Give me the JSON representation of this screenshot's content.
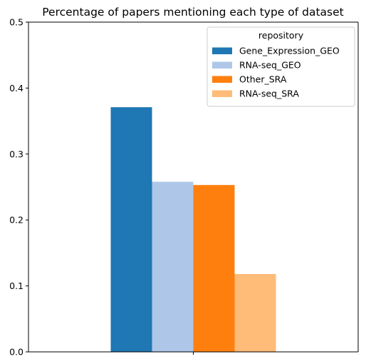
{
  "chart_data": {
    "type": "bar",
    "title": "Percentage of papers mentioning each type of dataset",
    "xlabel": "",
    "ylabel": "",
    "categories": [
      ""
    ],
    "ylim": [
      0,
      0.5
    ],
    "yticks": [
      "0.0",
      "0.1",
      "0.2",
      "0.3",
      "0.4",
      "0.5"
    ],
    "ytick_values": [
      0.0,
      0.1,
      0.2,
      0.3,
      0.4,
      0.5
    ],
    "grid": false,
    "legend": {
      "title": "repository",
      "placement": "top-right"
    },
    "series": [
      {
        "name": "Gene_Expression_GEO",
        "values": [
          0.371
        ],
        "color": "#1f77b4"
      },
      {
        "name": "RNA-seq_GEO",
        "values": [
          0.258
        ],
        "color": "#aec7e8"
      },
      {
        "name": "Other_SRA",
        "values": [
          0.253
        ],
        "color": "#ff7f0e"
      },
      {
        "name": "RNA-seq_SRA",
        "values": [
          0.118
        ],
        "color": "#ffbb78"
      }
    ]
  }
}
